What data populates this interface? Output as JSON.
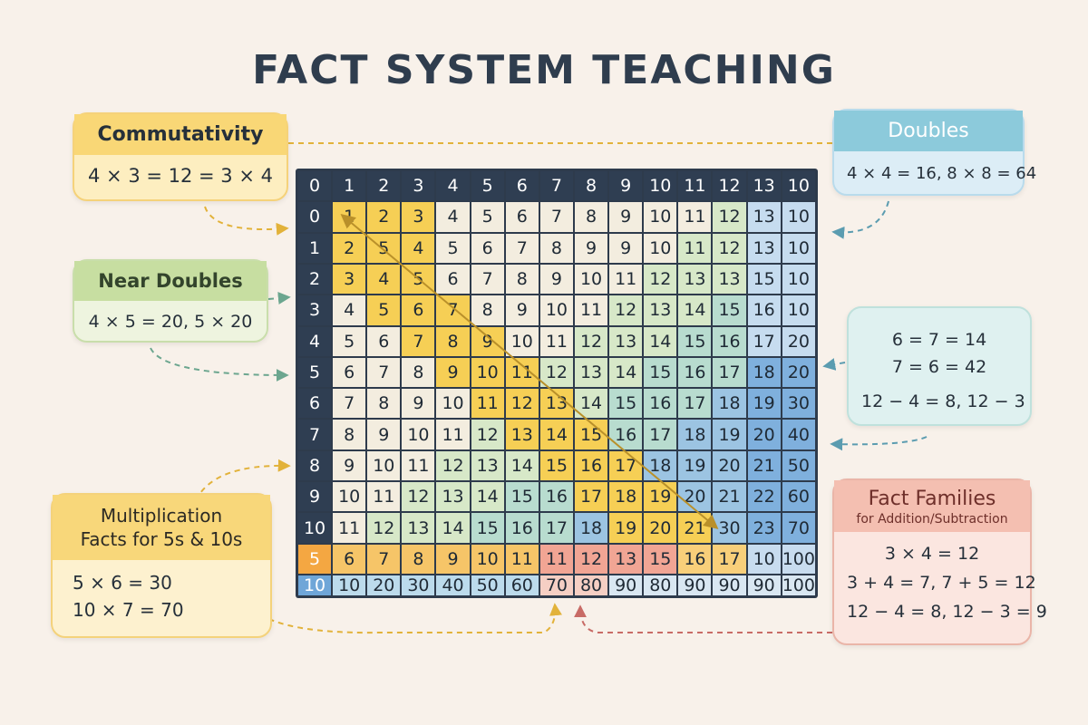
{
  "title": "FACT SYSTEM TEACHING",
  "cards": {
    "commutativity": {
      "title": "Commutativity",
      "lines": [
        "4 × 3 = 12 = 3 × 4"
      ]
    },
    "doubles": {
      "title": "Doubles",
      "lines": [
        "4 × 4 = 16, 8 × 8 = 64"
      ]
    },
    "near_doubles": {
      "title": "Near Doubles",
      "lines": [
        "4 × 5 = 20, 5 × 20"
      ]
    },
    "related": {
      "lines": [
        "6 = 7 = 14",
        "7 = 6 = 42",
        "12 − 4 = 8, 12 − 3"
      ]
    },
    "multiplication": {
      "title_line1": "Multiplication",
      "title_line2": "Facts for 5s & 10s",
      "lines": [
        "5 × 6 = 30",
        "10 × 7 = 70"
      ]
    },
    "fact_families": {
      "title": "Fact Families",
      "subtitle": "for Addition/Subtraction",
      "lines": [
        "3 × 4 = 12",
        "3 + 4 = 7, 7 + 5 = 12",
        "12 − 4 = 8, 12 − 3 = 9"
      ]
    }
  },
  "grid": {
    "header_row": [
      "0",
      "1",
      "2",
      "3",
      "4",
      "5",
      "6",
      "7",
      "8",
      "9",
      "10",
      "11",
      "12",
      "13",
      "10"
    ],
    "rows": [
      [
        "0",
        "1",
        "2",
        "3",
        "4",
        "5",
        "6",
        "7",
        "8",
        "9",
        "10",
        "11",
        "12",
        "13",
        "10"
      ],
      [
        "1",
        "2",
        "5",
        "4",
        "5",
        "6",
        "7",
        "8",
        "9",
        "9",
        "10",
        "11",
        "12",
        "13",
        "10"
      ],
      [
        "2",
        "3",
        "4",
        "5",
        "6",
        "7",
        "8",
        "9",
        "10",
        "11",
        "12",
        "13",
        "13",
        "15",
        "10"
      ],
      [
        "3",
        "4",
        "5",
        "6",
        "7",
        "8",
        "9",
        "10",
        "11",
        "12",
        "13",
        "14",
        "15",
        "16",
        "10"
      ],
      [
        "4",
        "5",
        "6",
        "7",
        "8",
        "9",
        "10",
        "11",
        "12",
        "13",
        "14",
        "15",
        "16",
        "17",
        "20"
      ],
      [
        "5",
        "6",
        "7",
        "8",
        "9",
        "10",
        "11",
        "12",
        "13",
        "14",
        "15",
        "16",
        "17",
        "18",
        "20"
      ],
      [
        "6",
        "7",
        "8",
        "9",
        "10",
        "11",
        "12",
        "13",
        "14",
        "15",
        "16",
        "17",
        "18",
        "19",
        "30"
      ],
      [
        "7",
        "8",
        "9",
        "10",
        "11",
        "12",
        "13",
        "14",
        "15",
        "16",
        "17",
        "18",
        "19",
        "20",
        "40"
      ],
      [
        "8",
        "9",
        "10",
        "11",
        "12",
        "13",
        "14",
        "15",
        "16",
        "17",
        "18",
        "19",
        "20",
        "21",
        "50"
      ],
      [
        "9",
        "10",
        "11",
        "12",
        "13",
        "14",
        "15",
        "16",
        "17",
        "18",
        "19",
        "20",
        "21",
        "22",
        "60"
      ],
      [
        "10",
        "11",
        "12",
        "13",
        "14",
        "15",
        "16",
        "17",
        "18",
        "19",
        "20",
        "21",
        "30",
        "23",
        "70"
      ],
      [
        "5",
        "6",
        "7",
        "8",
        "9",
        "10",
        "11",
        "11",
        "12",
        "13",
        "15",
        "16",
        "17",
        "10",
        "100"
      ],
      [
        "10",
        "10",
        "20",
        "30",
        "40",
        "50",
        "60",
        "70",
        "80",
        "90",
        "80",
        "90",
        "90",
        "90",
        "100"
      ]
    ]
  },
  "colors": {
    "background": "#f8f1ea",
    "grid_header": "#2f3e52",
    "yellow": "#f6cf55",
    "green": "#bfdca8",
    "teal": "#a6d7d3",
    "blue": "#6fa6d8",
    "coral": "#f1a594",
    "orange": "#f4a742",
    "arrow_yellow": "#e2b23a",
    "arrow_green": "#6ca68f",
    "arrow_red": "#c86b66",
    "arrow_blue": "#5b9cb0"
  }
}
